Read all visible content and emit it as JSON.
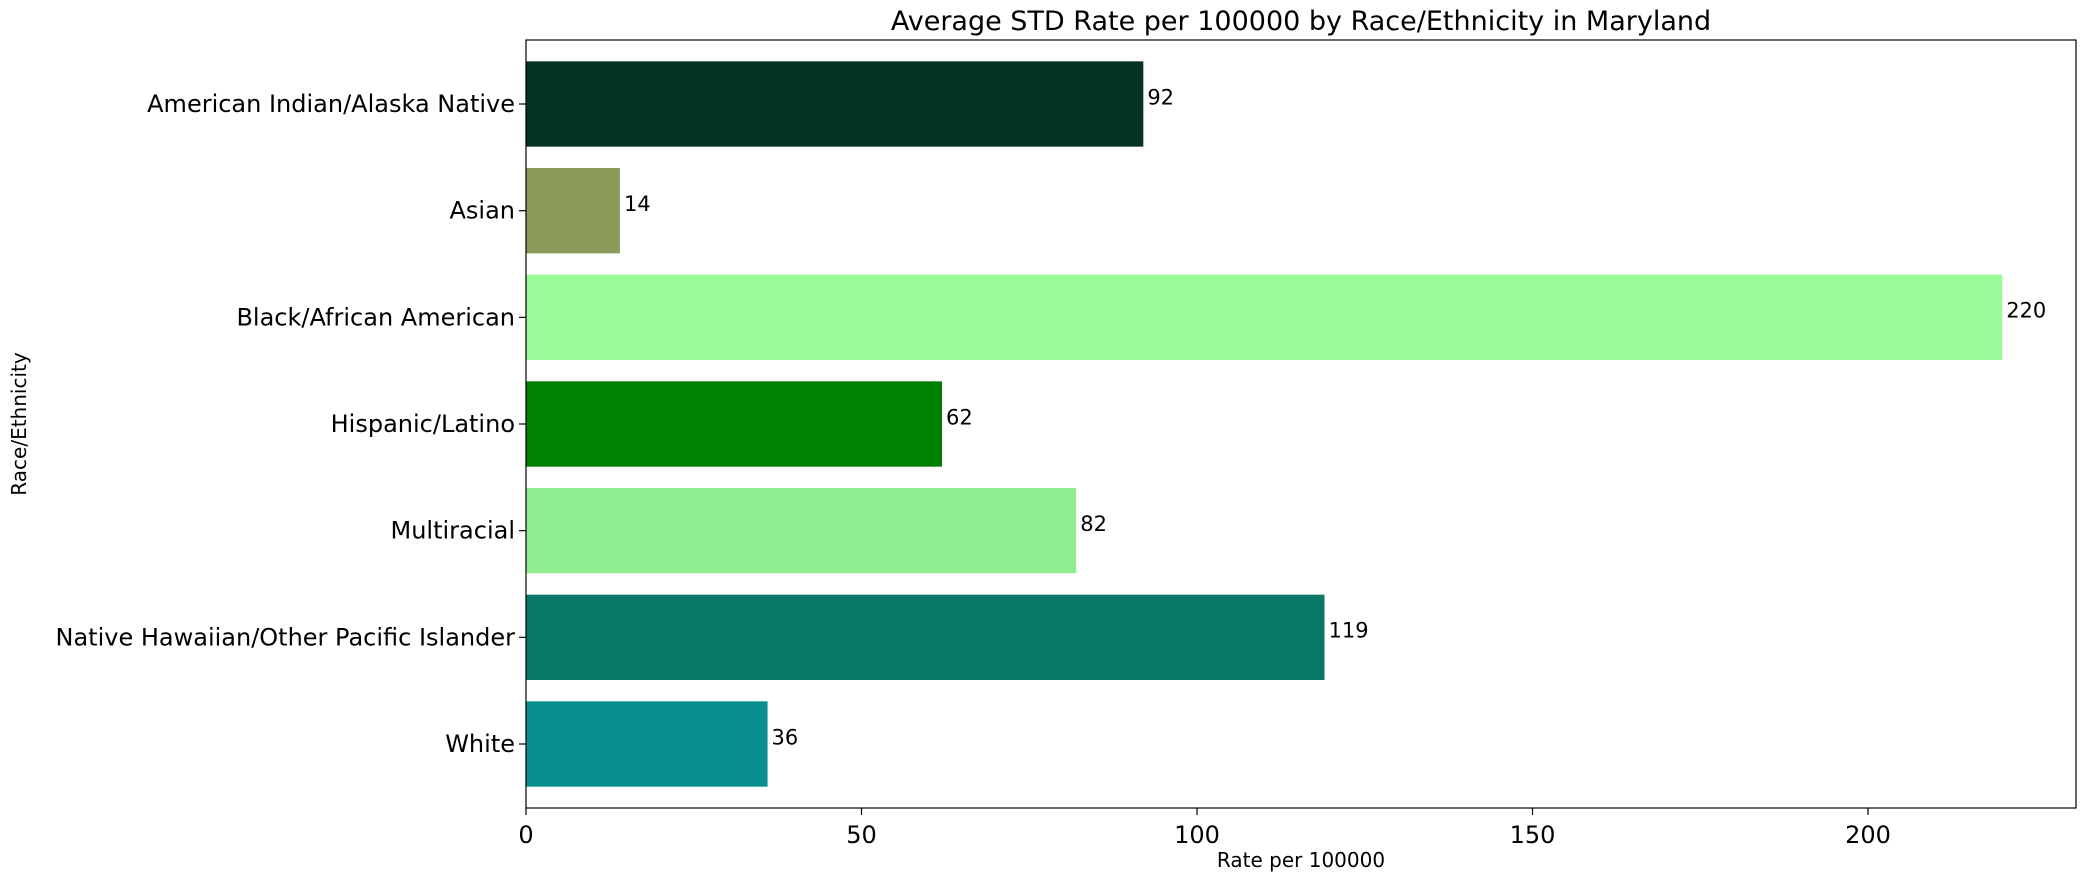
{
  "chart_data": {
    "type": "bar",
    "orientation": "horizontal",
    "title": "Average STD Rate per 100000 by Race/Ethnicity in Maryland",
    "xlabel": "Rate per 100000",
    "ylabel": "Race/Ethnicity",
    "categories": [
      "American Indian/Alaska Native",
      "Asian",
      "Black/African American",
      "Hispanic/Latino",
      "Multiracial",
      "Native Hawaiian/Other Pacific Islander",
      "White"
    ],
    "values": [
      92,
      14,
      220,
      62,
      82,
      119,
      36
    ],
    "value_labels": [
      "92",
      "14",
      "220",
      "62",
      "82",
      "119",
      "36"
    ],
    "colors": [
      "#033324",
      "#8a9a5b",
      "#98fb98",
      "#008000",
      "#90ee90",
      "#0a7869",
      "#0a8f8f"
    ],
    "xlim": [
      0,
      231
    ],
    "xticks": [
      0,
      50,
      100,
      150,
      200
    ],
    "grid": false,
    "legend": "none"
  }
}
